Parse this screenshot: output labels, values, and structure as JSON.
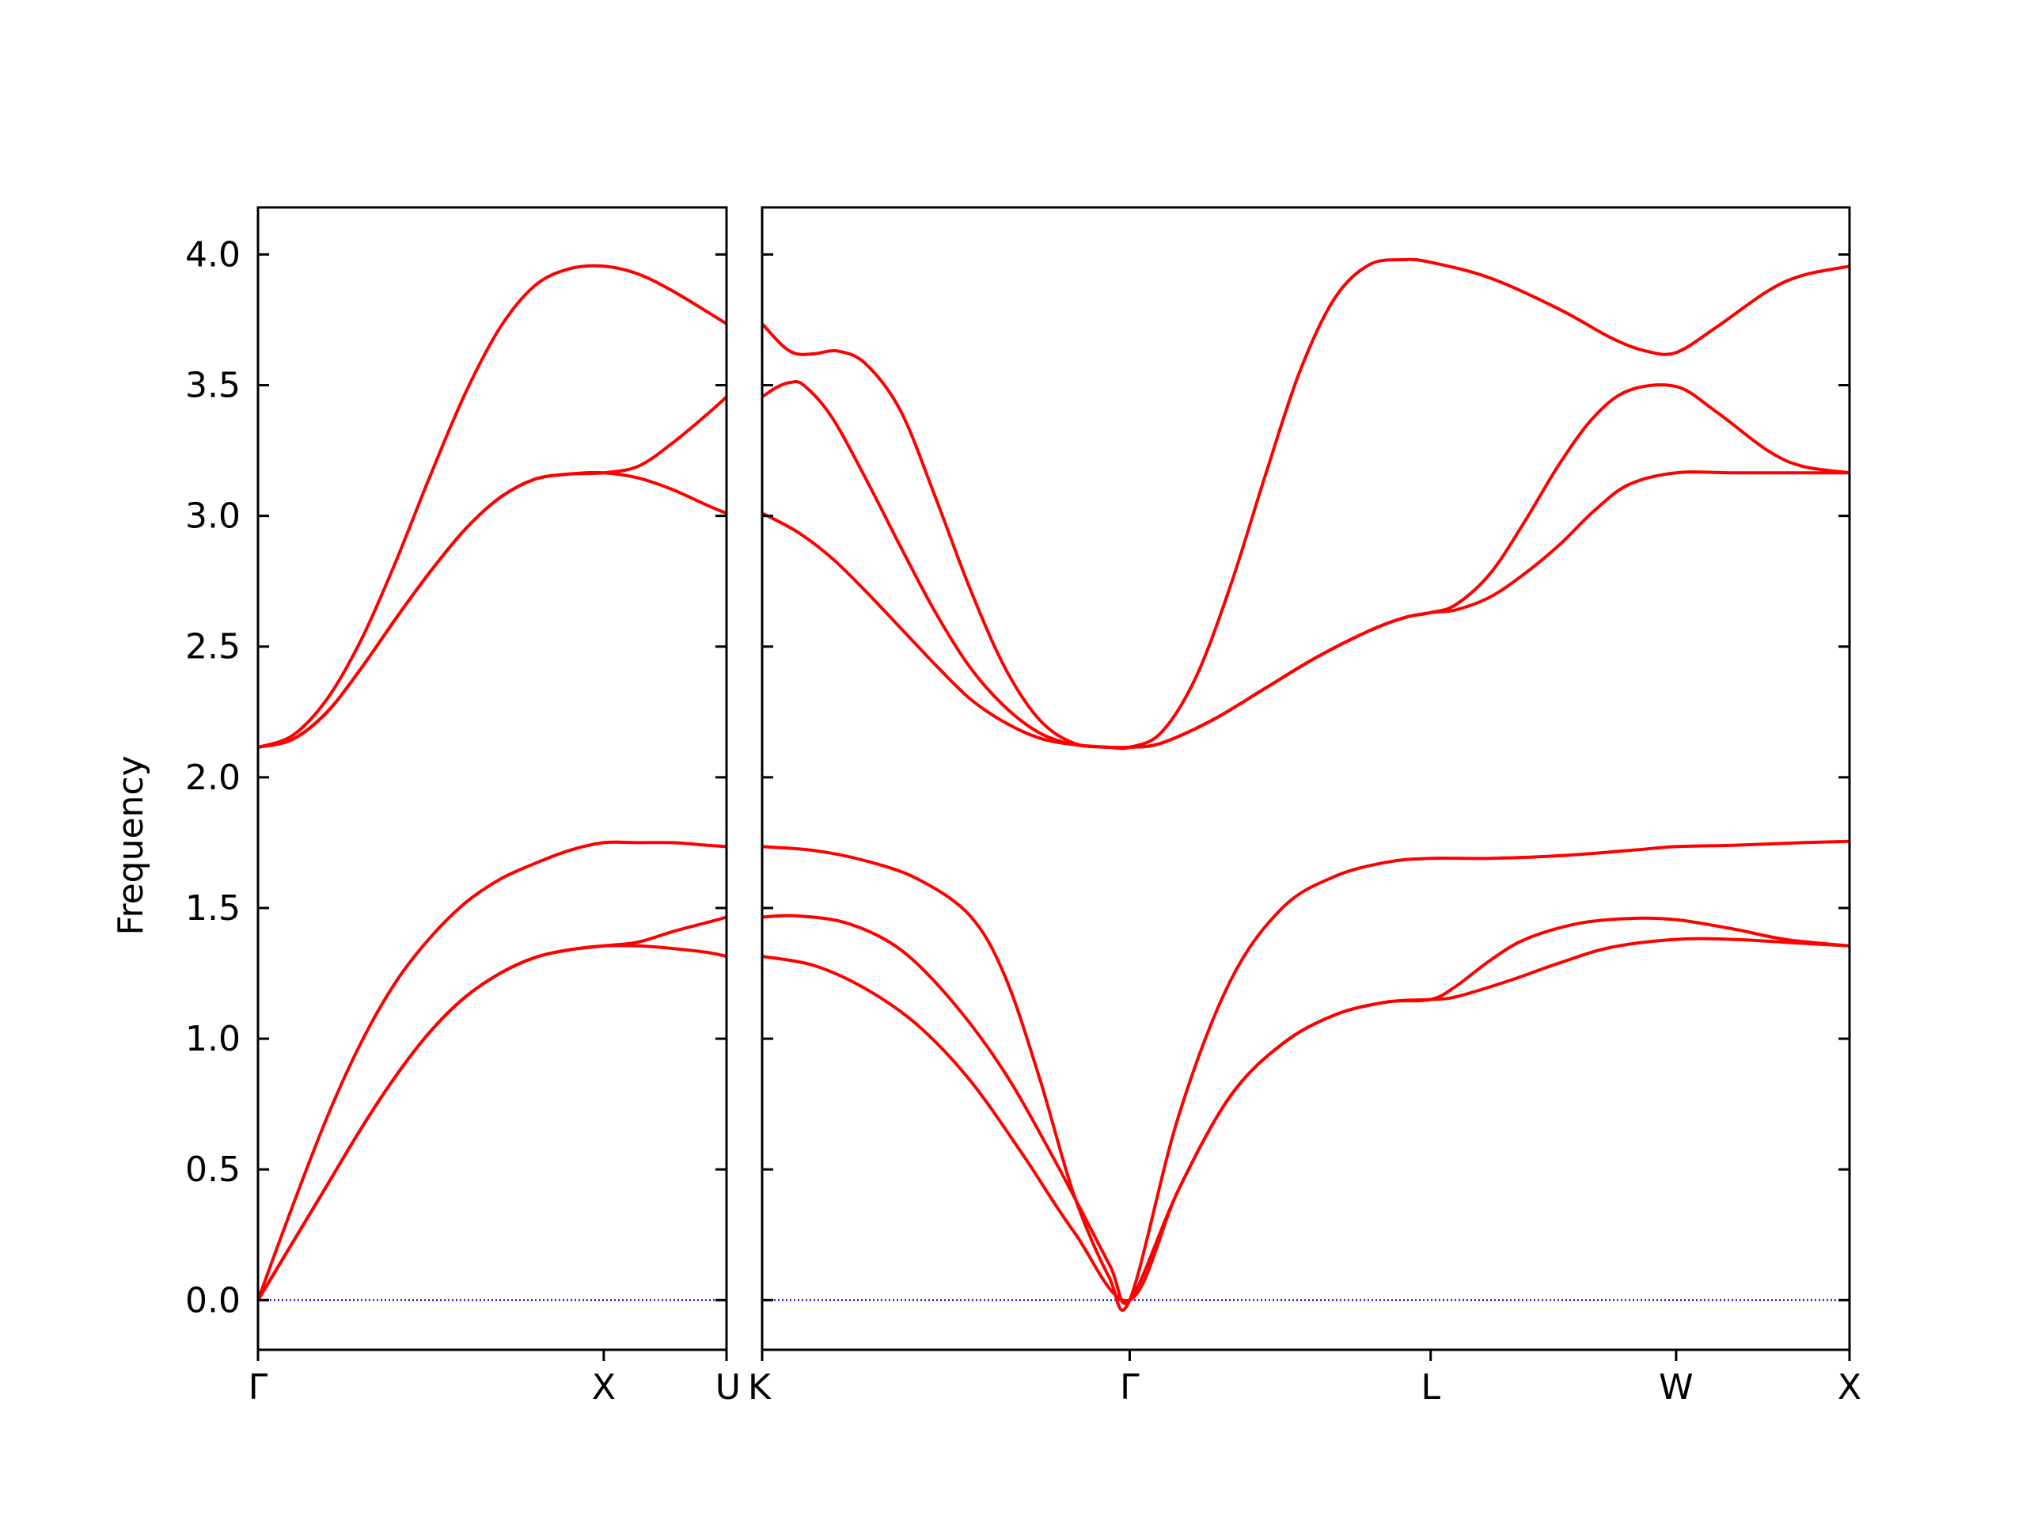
{
  "chart_data": {
    "type": "line",
    "ylabel": "Frequency",
    "ylim": [
      -0.19,
      4.18
    ],
    "yticks": [
      "0.0",
      "0.5",
      "1.0",
      "1.5",
      "2.0",
      "2.5",
      "3.0",
      "3.5",
      "4.0"
    ],
    "ytick_values": [
      0.0,
      0.5,
      1.0,
      1.5,
      2.0,
      2.5,
      3.0,
      3.5,
      4.0
    ],
    "grid": false,
    "line_color": "#ff0000",
    "zero_line_color": "#0000cc",
    "panels": [
      {
        "x_points": [
          "Γ",
          "X",
          "U"
        ],
        "x_positions": [
          0,
          1,
          1.355
        ],
        "series": [
          {
            "x": [
              0,
              0.1,
              0.2,
              0.3,
              0.4,
              0.5,
              0.6,
              0.7,
              0.8,
              0.9,
              1.0,
              1.1,
              1.2,
              1.3,
              1.355
            ],
            "y": [
              0.0,
              0.36,
              0.7,
              0.99,
              1.22,
              1.39,
              1.52,
              1.61,
              1.67,
              1.72,
              1.75,
              1.75,
              1.75,
              1.74,
              1.735
            ]
          },
          {
            "x": [
              0,
              0.1,
              0.2,
              0.3,
              0.4,
              0.5,
              0.6,
              0.7,
              0.8,
              0.9,
              1.0,
              1.1,
              1.2,
              1.3,
              1.355
            ],
            "y": [
              0.0,
              0.22,
              0.44,
              0.66,
              0.86,
              1.03,
              1.16,
              1.25,
              1.31,
              1.34,
              1.355,
              1.37,
              1.41,
              1.445,
              1.465
            ]
          },
          {
            "x": [
              0,
              0.1,
              0.2,
              0.3,
              0.4,
              0.5,
              0.6,
              0.7,
              0.8,
              0.9,
              1.0,
              1.1,
              1.2,
              1.3,
              1.355
            ],
            "y": [
              0.0,
              0.22,
              0.44,
              0.66,
              0.86,
              1.03,
              1.16,
              1.25,
              1.31,
              1.34,
              1.355,
              1.355,
              1.345,
              1.33,
              1.315
            ]
          },
          {
            "x": [
              0,
              0.1,
              0.2,
              0.3,
              0.4,
              0.5,
              0.6,
              0.7,
              0.8,
              0.9,
              1.0,
              1.1,
              1.2,
              1.3,
              1.355
            ],
            "y": [
              2.115,
              2.16,
              2.3,
              2.53,
              2.83,
              3.16,
              3.47,
              3.72,
              3.88,
              3.945,
              3.955,
              3.925,
              3.86,
              3.78,
              3.735
            ]
          },
          {
            "x": [
              0,
              0.1,
              0.2,
              0.3,
              0.4,
              0.5,
              0.6,
              0.7,
              0.8,
              0.9,
              1.0,
              1.1,
              1.2,
              1.3,
              1.355
            ],
            "y": [
              2.115,
              2.145,
              2.25,
              2.42,
              2.61,
              2.79,
              2.95,
              3.07,
              3.14,
              3.16,
              3.165,
              3.19,
              3.28,
              3.39,
              3.455
            ]
          },
          {
            "x": [
              0,
              0.1,
              0.2,
              0.3,
              0.4,
              0.5,
              0.6,
              0.7,
              0.8,
              0.9,
              1.0,
              1.1,
              1.2,
              1.3,
              1.355
            ],
            "y": [
              2.115,
              2.145,
              2.25,
              2.42,
              2.61,
              2.79,
              2.95,
              3.07,
              3.14,
              3.16,
              3.165,
              3.145,
              3.1,
              3.04,
              3.01
            ]
          }
        ]
      },
      {
        "x_points": [
          "K",
          "Γ",
          "L",
          "W",
          "X"
        ],
        "x_positions": [
          0,
          1.06,
          1.928,
          2.636,
          3.136
        ],
        "series": [
          {
            "x": [
              0,
              0.15,
              0.3,
              0.45,
              0.6,
              0.7,
              0.8,
              0.9,
              1.0,
              1.06,
              1.2,
              1.35,
              1.5,
              1.65,
              1.8,
              1.928,
              2.1,
              2.3,
              2.5,
              2.636,
              2.8,
              3.0,
              3.136
            ],
            "y": [
              1.735,
              1.72,
              1.68,
              1.61,
              1.47,
              1.24,
              0.85,
              0.4,
              0.09,
              0.0,
              0.7,
              1.22,
              1.5,
              1.62,
              1.675,
              1.69,
              1.69,
              1.7,
              1.72,
              1.735,
              1.74,
              1.75,
              1.755
            ]
          },
          {
            "x": [
              0,
              0.1,
              0.25,
              0.4,
              0.55,
              0.7,
              0.85,
              1.0,
              1.06,
              1.2,
              1.35,
              1.5,
              1.65,
              1.8,
              1.928,
              2.0,
              2.1,
              2.2,
              2.35,
              2.5,
              2.636,
              2.8,
              2.95,
              3.136
            ],
            "y": [
              1.465,
              1.47,
              1.44,
              1.34,
              1.14,
              0.87,
              0.52,
              0.14,
              0.0,
              0.42,
              0.78,
              0.98,
              1.09,
              1.14,
              1.15,
              1.2,
              1.3,
              1.38,
              1.44,
              1.46,
              1.455,
              1.42,
              1.38,
              1.355
            ]
          },
          {
            "x": [
              0,
              0.15,
              0.3,
              0.45,
              0.6,
              0.75,
              0.9,
              1.06,
              1.2,
              1.35,
              1.5,
              1.65,
              1.8,
              1.928,
              2.0,
              2.15,
              2.3,
              2.45,
              2.636,
              2.8,
              3.0,
              3.136
            ],
            "y": [
              1.315,
              1.28,
              1.19,
              1.05,
              0.84,
              0.56,
              0.26,
              0.0,
              0.42,
              0.78,
              0.98,
              1.09,
              1.14,
              1.15,
              1.16,
              1.22,
              1.29,
              1.35,
              1.38,
              1.38,
              1.365,
              1.355
            ]
          },
          {
            "x": [
              0,
              0.06,
              0.1,
              0.15,
              0.22,
              0.3,
              0.4,
              0.5,
              0.6,
              0.7,
              0.8,
              0.9,
              1.0,
              1.06,
              1.15,
              1.25,
              1.35,
              1.45,
              1.55,
              1.65,
              1.75,
              1.85,
              1.928,
              2.1,
              2.3,
              2.45,
              2.55,
              2.636,
              2.75,
              2.9,
              3.0,
              3.136
            ],
            "y": [
              3.735,
              3.65,
              3.62,
              3.62,
              3.63,
              3.58,
              3.4,
              3.07,
              2.72,
              2.42,
              2.22,
              2.13,
              2.115,
              2.115,
              2.17,
              2.38,
              2.73,
              3.15,
              3.55,
              3.83,
              3.96,
              3.98,
              3.97,
              3.91,
              3.79,
              3.68,
              3.63,
              3.625,
              3.72,
              3.86,
              3.92,
              3.955
            ]
          },
          {
            "x": [
              0,
              0.04,
              0.08,
              0.12,
              0.2,
              0.3,
              0.4,
              0.5,
              0.6,
              0.7,
              0.8,
              0.9,
              1.0,
              1.06,
              1.15,
              1.3,
              1.45,
              1.6,
              1.75,
              1.85,
              1.928,
              2.0,
              2.1,
              2.2,
              2.3,
              2.4,
              2.5,
              2.636,
              2.75,
              2.9,
              3.0,
              3.136
            ],
            "y": [
              3.455,
              3.49,
              3.51,
              3.5,
              3.38,
              3.14,
              2.88,
              2.63,
              2.42,
              2.27,
              2.17,
              2.125,
              2.115,
              2.115,
              2.13,
              2.22,
              2.34,
              2.46,
              2.56,
              2.61,
              2.63,
              2.66,
              2.78,
              2.98,
              3.2,
              3.38,
              3.48,
              3.495,
              3.4,
              3.25,
              3.19,
              3.165
            ]
          },
          {
            "x": [
              0,
              0.1,
              0.2,
              0.3,
              0.4,
              0.5,
              0.6,
              0.7,
              0.8,
              0.9,
              1.0,
              1.06,
              1.15,
              1.3,
              1.45,
              1.6,
              1.75,
              1.85,
              1.928,
              2.0,
              2.1,
              2.2,
              2.3,
              2.4,
              2.5,
              2.636,
              2.8,
              3.0,
              3.136
            ],
            "y": [
              3.01,
              2.94,
              2.84,
              2.71,
              2.57,
              2.43,
              2.3,
              2.21,
              2.15,
              2.125,
              2.115,
              2.115,
              2.13,
              2.22,
              2.34,
              2.46,
              2.56,
              2.61,
              2.63,
              2.64,
              2.69,
              2.78,
              2.89,
              3.02,
              3.12,
              3.165,
              3.165,
              3.165,
              3.165
            ]
          }
        ]
      }
    ]
  }
}
